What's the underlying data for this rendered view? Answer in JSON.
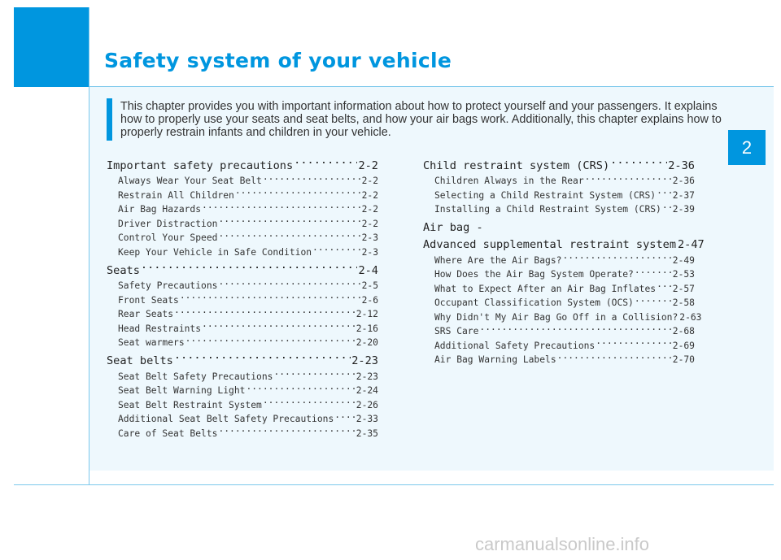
{
  "page": {
    "title": "Safety system of your vehicle",
    "chapter_number": "2",
    "intro": "This chapter provides you with important information about how to protect yourself and your passengers. It explains how to properly use your seats and seat belts, and how your air bags work. Additionally, this chapter explains how to properly restrain infants and children in your vehicle.",
    "watermark": "carmanualsonline.info"
  },
  "toc": {
    "left": [
      {
        "title": "Important safety precautions",
        "page": "2-2",
        "items": [
          {
            "label": "Always Wear Your Seat Belt",
            "page": "2-2"
          },
          {
            "label": "Restrain All Children",
            "page": "2-2"
          },
          {
            "label": "Air Bag Hazards",
            "page": "2-2"
          },
          {
            "label": "Driver Distraction",
            "page": "2-2"
          },
          {
            "label": "Control Your Speed",
            "page": "2-3"
          },
          {
            "label": "Keep Your Vehicle in Safe Condition",
            "page": "2-3"
          }
        ]
      },
      {
        "title": "Seats",
        "page": "2-4",
        "items": [
          {
            "label": "Safety Precautions",
            "page": "2-5"
          },
          {
            "label": "Front Seats",
            "page": "2-6"
          },
          {
            "label": "Rear Seats",
            "page": "2-12"
          },
          {
            "label": "Head Restraints",
            "page": "2-16"
          },
          {
            "label": "Seat warmers",
            "page": "2-20"
          }
        ]
      },
      {
        "title": "Seat belts",
        "page": "2-23",
        "items": [
          {
            "label": "Seat Belt Safety Precautions",
            "page": "2-23"
          },
          {
            "label": "Seat Belt Warning Light",
            "page": "2-24"
          },
          {
            "label": "Seat Belt Restraint System",
            "page": "2-26"
          },
          {
            "label": "Additional Seat Belt Safety Precautions",
            "page": "2-33"
          },
          {
            "label": "Care of Seat Belts",
            "page": "2-35"
          }
        ]
      }
    ],
    "right": [
      {
        "title": "Child restraint system (CRS)",
        "page": "2-36",
        "items": [
          {
            "label": "Children Always in the Rear",
            "page": "2-36"
          },
          {
            "label": "Selecting a Child Restraint System (CRS)",
            "page": "2-37"
          },
          {
            "label": "Installing a Child Restraint System (CRS)",
            "page": "2-39"
          }
        ]
      },
      {
        "title_line1": "Air bag -",
        "title": "Advanced supplemental restraint system",
        "page": "2-47",
        "items": [
          {
            "label": "Where Are the Air Bags?",
            "page": "2-49"
          },
          {
            "label": "How Does the Air Bag System Operate?",
            "page": "2-53"
          },
          {
            "label": "What to Expect After an Air Bag Inflates",
            "page": "2-57"
          },
          {
            "label": "Occupant Classification System (OCS)",
            "page": "2-58"
          },
          {
            "label": "Why Didn't My Air Bag Go Off in a Collision?",
            "page": "2-63"
          },
          {
            "label": "SRS Care",
            "page": "2-68"
          },
          {
            "label": "Additional Safety Precautions",
            "page": "2-69"
          },
          {
            "label": "Air Bag Warning Labels",
            "page": "2-70"
          }
        ]
      }
    ]
  }
}
